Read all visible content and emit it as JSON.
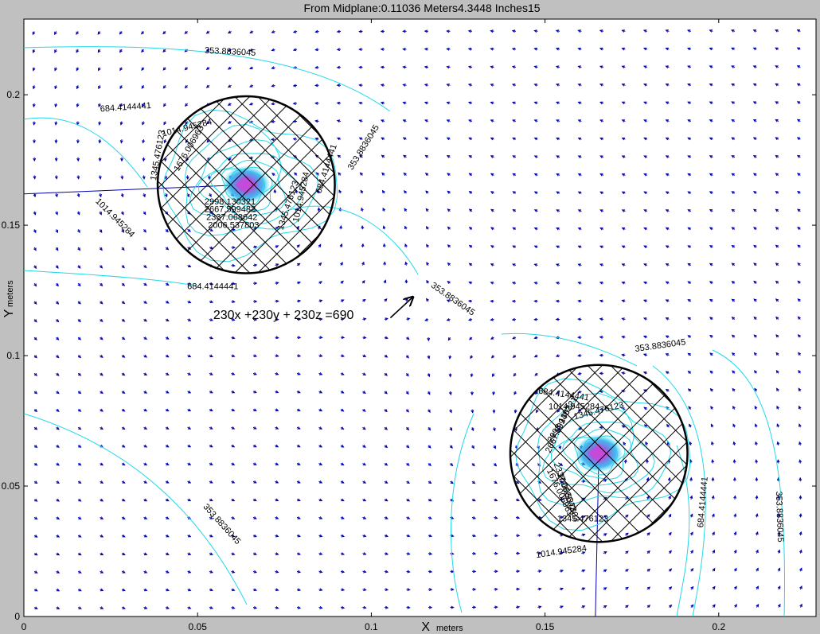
{
  "chart_data": {
    "type": "contour",
    "title": "From Midplane:0.11036 Meters4.3448 Inches15",
    "xlabel_main": "X",
    "xlabel_sub": "meters",
    "ylabel_main": "Y",
    "ylabel_sub": "meters",
    "xlim": [
      0,
      0.228
    ],
    "ylim": [
      0,
      0.229
    ],
    "xticks": [
      0,
      0.05,
      0.1,
      0.15,
      0.2
    ],
    "xtick_labels": [
      "0",
      "0.05",
      "0.1",
      "0.15",
      "0.2"
    ],
    "yticks": [
      0,
      0.05,
      0.1,
      0.15,
      0.2
    ],
    "ytick_labels": [
      "0",
      "0.05",
      "0.1",
      "0.15",
      "0.2"
    ],
    "grid": false,
    "annotation": {
      "text": "230x +230y + 230z =690",
      "x": 0.0545,
      "y": 0.114,
      "arrow_from": [
        0.1055,
        0.1145
      ],
      "arrow_to": [
        0.112,
        0.1225
      ]
    },
    "contour_levels": [
      353.8836045,
      684.4144441,
      1014.945284,
      1345.476123,
      1676.006963,
      2006.537803,
      2337.068642,
      2667.599482,
      2998.130321
    ],
    "sources": [
      {
        "center": [
          0.064,
          0.1655
        ],
        "radius": 0.0255,
        "peak_color": "#cc44cc"
      },
      {
        "center": [
          0.1655,
          0.0625
        ],
        "radius": 0.0255,
        "peak_color": "#cc44cc"
      }
    ],
    "contour_labels": [
      {
        "text": "353.8836045",
        "x": 0.052,
        "y": 0.216,
        "angle": 3
      },
      {
        "text": "684.4144441",
        "x": 0.022,
        "y": 0.1935,
        "angle": -4
      },
      {
        "text": "1014.945284",
        "x": 0.04,
        "y": 0.184,
        "angle": -14
      },
      {
        "text": "1345.476123",
        "x": 0.038,
        "y": 0.167,
        "angle": -80
      },
      {
        "text": "1676.006963",
        "x": 0.0445,
        "y": 0.1705,
        "angle": -60
      },
      {
        "text": "2998.130321",
        "x": 0.052,
        "y": 0.158,
        "angle": 0
      },
      {
        "text": "2667.599482",
        "x": 0.052,
        "y": 0.155,
        "angle": 0
      },
      {
        "text": "2337.068642",
        "x": 0.0525,
        "y": 0.152,
        "angle": 0
      },
      {
        "text": "2006.537803",
        "x": 0.053,
        "y": 0.149,
        "angle": 0
      },
      {
        "text": "1345.476123",
        "x": 0.0745,
        "y": 0.148,
        "angle": -72
      },
      {
        "text": "1014.945284",
        "x": 0.079,
        "y": 0.151,
        "angle": -78
      },
      {
        "text": "684.4144441",
        "x": 0.0855,
        "y": 0.162,
        "angle": -72
      },
      {
        "text": "353.8836045",
        "x": 0.0945,
        "y": 0.171,
        "angle": -58
      },
      {
        "text": "1014.945284",
        "x": 0.0205,
        "y": 0.159,
        "angle": 45
      },
      {
        "text": "684.4144441",
        "x": 0.047,
        "y": 0.1255,
        "angle": 0
      },
      {
        "text": "353.8836045",
        "x": 0.117,
        "y": 0.1265,
        "angle": 35
      },
      {
        "text": "353.8836045",
        "x": 0.176,
        "y": 0.1015,
        "angle": -8
      },
      {
        "text": "684.4144441",
        "x": 0.148,
        "y": 0.0855,
        "angle": 8
      },
      {
        "text": "1014.945284",
        "x": 0.151,
        "y": 0.0795,
        "angle": 0
      },
      {
        "text": "1345.476123",
        "x": 0.1585,
        "y": 0.0755,
        "angle": -14
      },
      {
        "text": "2998.130321",
        "x": 0.152,
        "y": 0.0665,
        "angle": -60
      },
      {
        "text": "2667.599482",
        "x": 0.1515,
        "y": 0.0625,
        "angle": -65
      },
      {
        "text": "2337.068642",
        "x": 0.1525,
        "y": 0.0585,
        "angle": 70
      },
      {
        "text": "2006.537803",
        "x": 0.1535,
        "y": 0.0545,
        "angle": 70
      },
      {
        "text": "1676.006963",
        "x": 0.1505,
        "y": 0.056,
        "angle": 65
      },
      {
        "text": "1345.476123",
        "x": 0.1535,
        "y": 0.0365,
        "angle": 0
      },
      {
        "text": "1014.945284",
        "x": 0.1475,
        "y": 0.0225,
        "angle": -8
      },
      {
        "text": "684.4144441",
        "x": 0.1955,
        "y": 0.034,
        "angle": -85
      },
      {
        "text": "353.8836045",
        "x": 0.2165,
        "y": 0.048,
        "angle": 88
      },
      {
        "text": "353.8836045",
        "x": 0.0515,
        "y": 0.042,
        "angle": 48
      }
    ],
    "quiver": {
      "x_start": 0.003,
      "x_step": 0.0063,
      "x_count": 36,
      "y_start": 0.0035,
      "y_step": 0.0069,
      "y_count": 33
    }
  }
}
